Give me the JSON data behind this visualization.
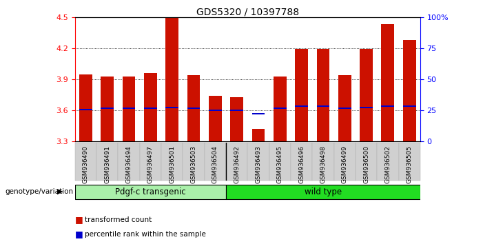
{
  "title": "GDS5320 / 10397788",
  "samples": [
    "GSM936490",
    "GSM936491",
    "GSM936494",
    "GSM936497",
    "GSM936501",
    "GSM936503",
    "GSM936504",
    "GSM936492",
    "GSM936493",
    "GSM936495",
    "GSM936496",
    "GSM936498",
    "GSM936499",
    "GSM936500",
    "GSM936502",
    "GSM936505"
  ],
  "bar_tops": [
    3.95,
    3.93,
    3.93,
    3.96,
    4.49,
    3.94,
    3.74,
    3.73,
    3.42,
    3.93,
    4.19,
    4.19,
    3.94,
    4.19,
    4.43,
    4.28
  ],
  "percentile_values": [
    3.61,
    3.62,
    3.62,
    3.62,
    3.63,
    3.62,
    3.6,
    3.6,
    3.57,
    3.62,
    3.64,
    3.64,
    3.62,
    3.63,
    3.64,
    3.64
  ],
  "ymin": 3.3,
  "ymax": 4.5,
  "yticks": [
    3.3,
    3.6,
    3.9,
    4.2,
    4.5
  ],
  "right_yticks": [
    0,
    25,
    50,
    75,
    100
  ],
  "right_yticklabels": [
    "0",
    "25",
    "50",
    "75",
    "100%"
  ],
  "groups": [
    {
      "label": "Pdgf-c transgenic",
      "start": 0,
      "end": 7,
      "color": "#aaf0aa"
    },
    {
      "label": "wild type",
      "start": 7,
      "end": 16,
      "color": "#22dd22"
    }
  ],
  "group_label": "genotype/variation",
  "bar_color": "#cc1100",
  "percentile_color": "#0000cc",
  "bg_color": "#ffffff",
  "legend_items": [
    {
      "label": "transformed count",
      "color": "#cc1100"
    },
    {
      "label": "percentile rank within the sample",
      "color": "#0000cc"
    }
  ],
  "bar_bottom": 3.3,
  "percentile_bar_height": 0.014
}
